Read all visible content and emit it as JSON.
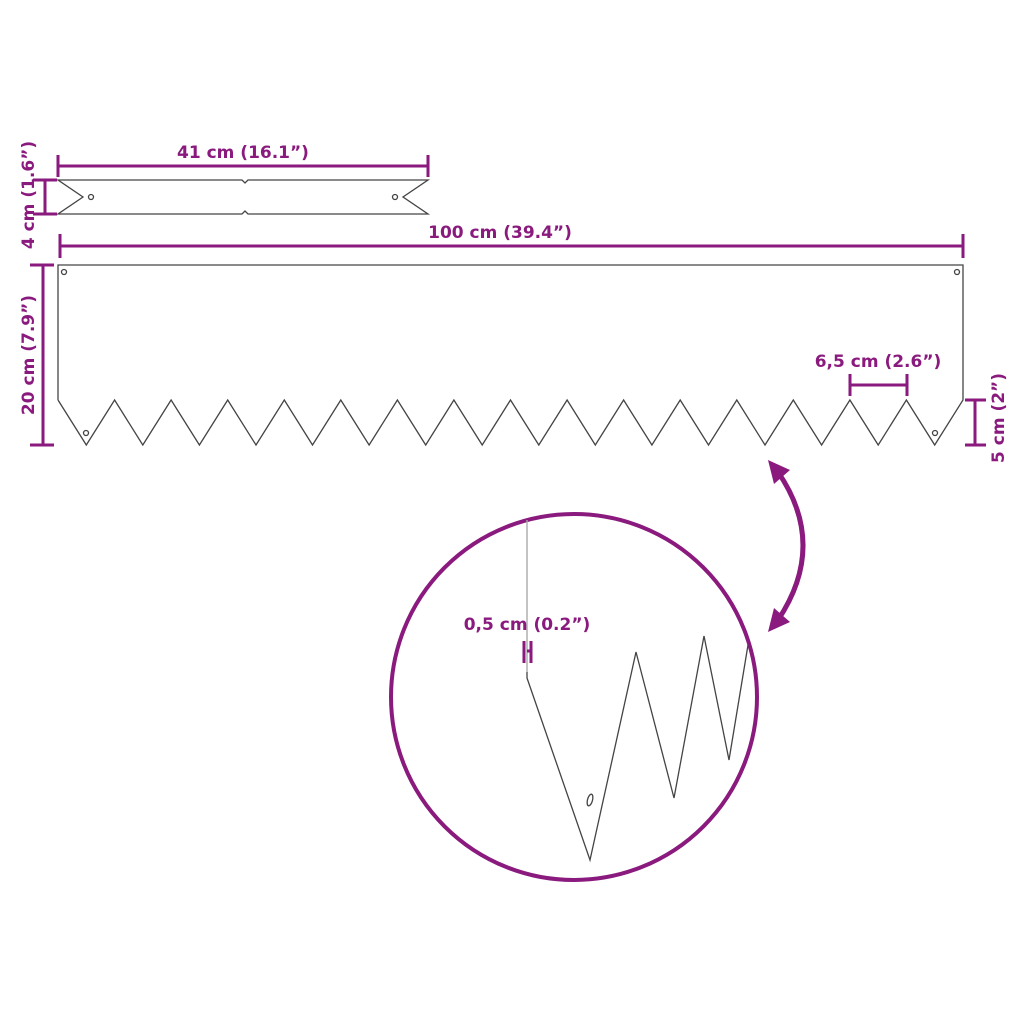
{
  "colors": {
    "dimension": "#8a1a7e",
    "outline": "#444444"
  },
  "dimensions": {
    "piece_length": "41 cm (16.1”)",
    "piece_height": "4 cm (1.6”)",
    "panel_length": "100 cm (39.4”)",
    "panel_height": "20 cm (7.9”)",
    "tooth_width": "6,5 cm (2.6”)",
    "tooth_height": "5 cm (2”)",
    "thickness": "0,5 cm (0.2”)"
  }
}
